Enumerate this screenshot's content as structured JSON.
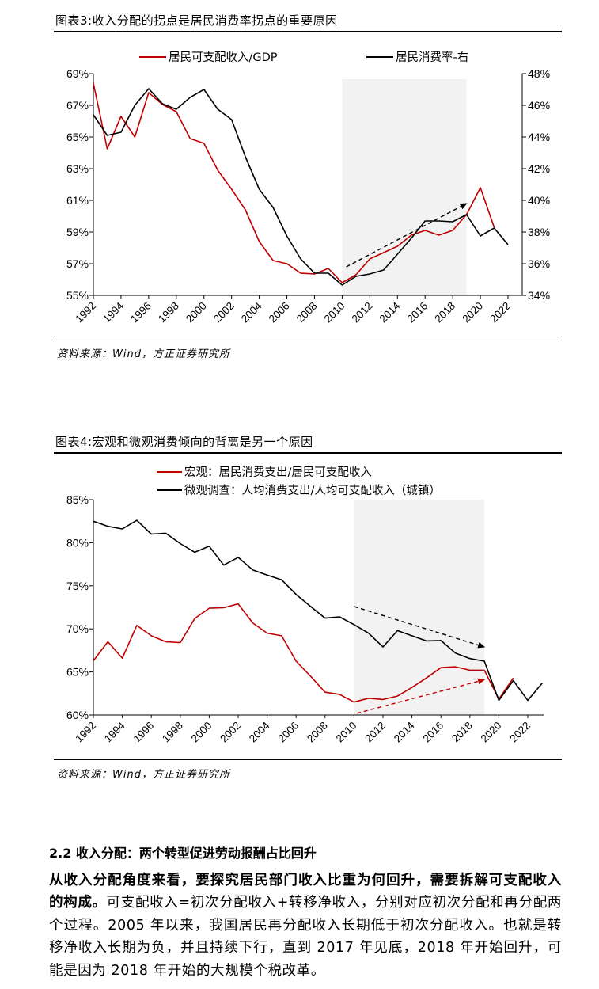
{
  "figure3": {
    "title": "图表3:收入分配的拐点是居民消费率拐点的重要原因",
    "source": "资料来源：Wind，方正证券研究所"
  },
  "figure4": {
    "title": "图表4:宏观和微观消费倾向的背离是另一个原因",
    "source": "资料来源：Wind，方正证券研究所"
  },
  "section": {
    "heading": "2.2 收入分配：两个转型促进劳动报酬占比回升",
    "para_bold": "从收入分配角度来看，要探究居民部门收入比重为何回升，需要拆解可支配收入的构成。",
    "para_normal": "可支配收入=初次分配收入+转移净收入，分别对应初次分配和再分配两个过程。2005 年以来，我国居民再分配收入长期低于初次分配收入。也就是转移净收入长期为负，并且持续下行，直到 2017 年见底，2018 年开始回升，可能是因为 2018 年开始的大规模个税改革。"
  },
  "chart_data": [
    {
      "type": "line",
      "title": "",
      "x": [
        1992,
        1993,
        1994,
        1995,
        1996,
        1997,
        1998,
        1999,
        2000,
        2001,
        2002,
        2003,
        2004,
        2005,
        2006,
        2007,
        2008,
        2009,
        2010,
        2011,
        2012,
        2013,
        2014,
        2015,
        2016,
        2017,
        2018,
        2019,
        2020,
        2021,
        2022
      ],
      "x_tick_labels": [
        "1992",
        "1994",
        "1996",
        "1998",
        "2000",
        "2002",
        "2004",
        "2006",
        "2008",
        "2010",
        "2012",
        "2014",
        "2016",
        "2018",
        "2020",
        "2022"
      ],
      "ylim": [
        55,
        69
      ],
      "y_ticks": [
        "55%",
        "57%",
        "59%",
        "61%",
        "63%",
        "65%",
        "67%",
        "69%"
      ],
      "y2lim": [
        34,
        48
      ],
      "y2_ticks": [
        "34%",
        "36%",
        "38%",
        "40%",
        "42%",
        "44%",
        "46%",
        "48%"
      ],
      "legend_position": "top",
      "grid": false,
      "shaded_range": [
        2010,
        2019
      ],
      "series": [
        {
          "name": "居民可支配收入/GDP",
          "axis": "left",
          "color": "#C00000",
          "values": [
            68.4,
            64.25,
            66.3,
            65.0,
            67.8,
            67.05,
            66.6,
            64.9,
            64.6,
            62.9,
            61.7,
            60.4,
            58.4,
            57.2,
            57.0,
            56.4,
            56.35,
            56.7,
            55.8,
            56.3,
            57.3,
            57.7,
            58.1,
            58.8,
            59.1,
            58.8,
            59.1,
            60.1,
            61.8,
            59.3,
            null
          ]
        },
        {
          "name": "居民消费率-右",
          "axis": "right",
          "color": "#000000",
          "values": [
            45.4,
            44.1,
            44.3,
            46.0,
            47.05,
            46.1,
            45.75,
            46.5,
            47.0,
            45.75,
            45.1,
            42.75,
            40.7,
            39.55,
            37.75,
            36.3,
            35.4,
            35.4,
            34.65,
            35.2,
            35.35,
            35.6,
            36.6,
            37.6,
            38.7,
            38.7,
            38.65,
            39.1,
            37.75,
            38.25,
            37.2
          ]
        }
      ],
      "annotations": [
        {
          "type": "dashed-arrow",
          "color": "#000000",
          "from": [
            2010.3,
            56.8
          ],
          "to": [
            2019,
            60.8
          ]
        }
      ]
    },
    {
      "type": "line",
      "title": "",
      "x": [
        1992,
        1993,
        1994,
        1995,
        1996,
        1997,
        1998,
        1999,
        2000,
        2001,
        2002,
        2003,
        2004,
        2005,
        2006,
        2007,
        2008,
        2009,
        2010,
        2011,
        2012,
        2013,
        2014,
        2015,
        2016,
        2017,
        2018,
        2019,
        2020,
        2021,
        2022,
        2023
      ],
      "x_tick_labels": [
        "1992",
        "1994",
        "1996",
        "1998",
        "2000",
        "2002",
        "2004",
        "2006",
        "2008",
        "2010",
        "2012",
        "2014",
        "2016",
        "2018",
        "2020",
        "2022"
      ],
      "ylim": [
        60,
        85
      ],
      "y_ticks": [
        "60%",
        "65%",
        "70%",
        "75%",
        "80%",
        "85%"
      ],
      "legend_position": "top",
      "grid": false,
      "shaded_range": [
        2010,
        2019
      ],
      "series": [
        {
          "name": "宏观：居民消费支出/居民可支配收入",
          "axis": "left",
          "color": "#C00000",
          "values": [
            66.3,
            68.5,
            66.6,
            70.4,
            69.2,
            68.5,
            68.4,
            71.2,
            72.4,
            72.45,
            72.9,
            70.7,
            69.5,
            69.2,
            66.25,
            64.5,
            62.65,
            62.4,
            61.5,
            61.95,
            61.8,
            62.2,
            63.2,
            64.3,
            65.5,
            65.6,
            65.2,
            65.2,
            61.85,
            64.3,
            null,
            null
          ]
        },
        {
          "name": "微观调查：人均消费支出/人均可支配收入（城镇）",
          "axis": "left",
          "color": "#000000",
          "values": [
            82.5,
            81.9,
            81.6,
            82.6,
            81.0,
            81.1,
            79.9,
            78.9,
            79.6,
            77.4,
            78.3,
            76.85,
            76.25,
            75.7,
            74.0,
            72.6,
            71.25,
            71.4,
            70.5,
            69.5,
            67.9,
            69.8,
            69.2,
            68.6,
            68.65,
            67.2,
            66.55,
            66.25,
            61.7,
            64.0,
            61.7,
            63.7
          ]
        }
      ],
      "annotations": [
        {
          "type": "dashed-arrow",
          "color": "#000000",
          "from": [
            2010,
            72.6
          ],
          "to": [
            2019,
            67.9
          ]
        },
        {
          "type": "dashed-arrow",
          "color": "#C00000",
          "from": [
            2010.2,
            60.2
          ],
          "to": [
            2019,
            64.1
          ]
        }
      ]
    }
  ]
}
